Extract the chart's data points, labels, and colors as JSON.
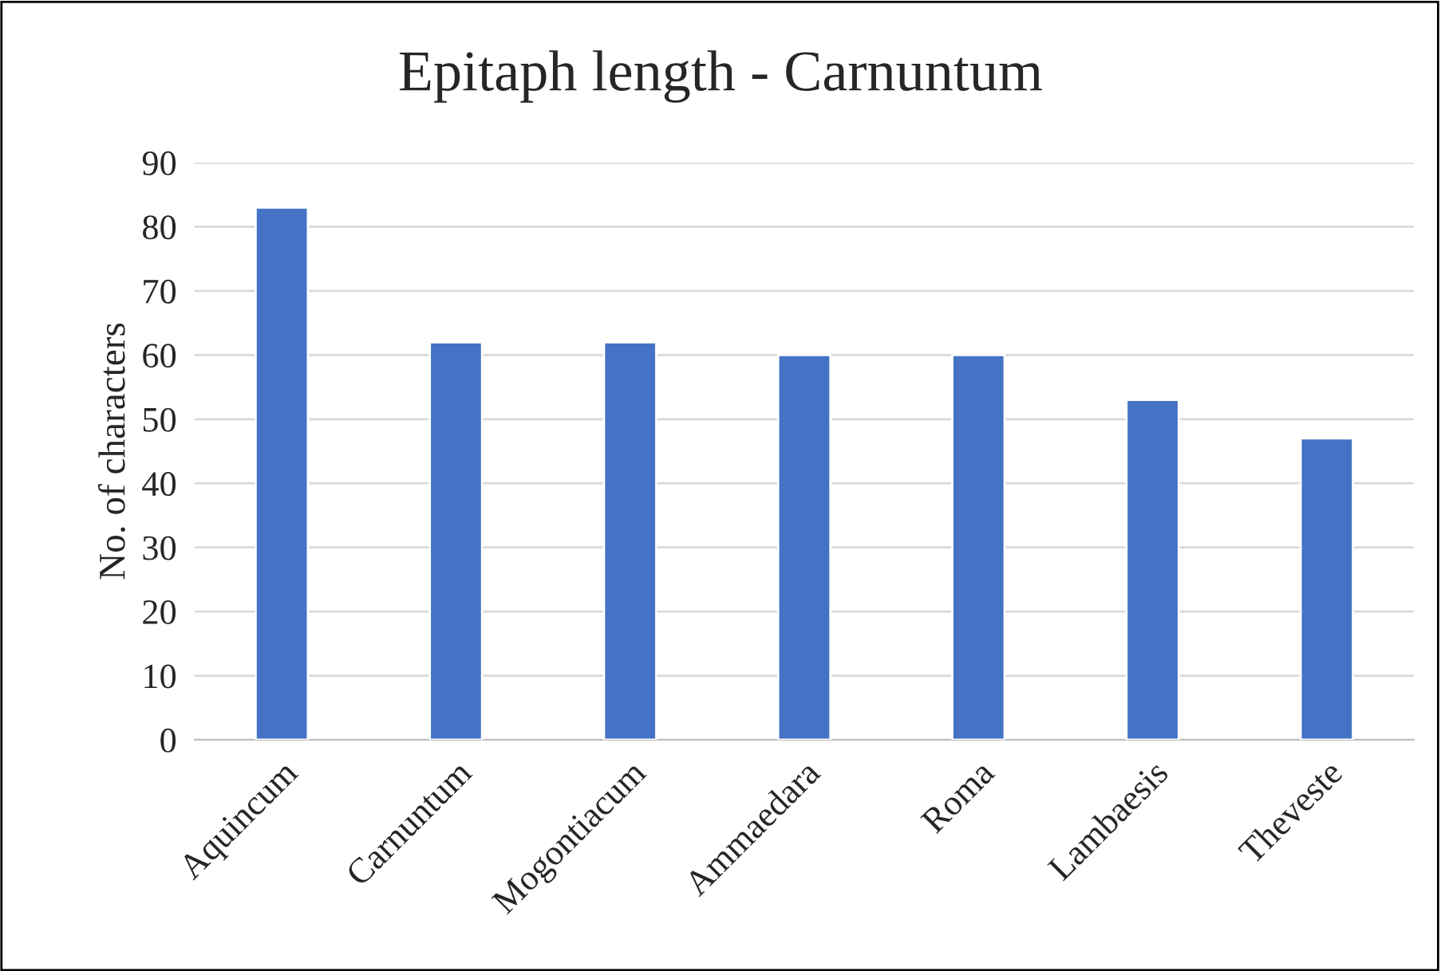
{
  "chart_data": {
    "type": "bar",
    "title": "Epitaph length - Carnuntum",
    "ylabel": "No. of characters",
    "categories": [
      "Aquincum",
      "Carnuntum",
      "Mogontiacum",
      "Ammaedara",
      "Roma",
      "Lambaesis",
      "Theveste"
    ],
    "values": [
      83,
      62,
      62,
      60,
      60,
      53,
      47
    ],
    "color": "#4472c4",
    "ylim": [
      0,
      90
    ],
    "yticks": [
      0,
      10,
      20,
      30,
      40,
      50,
      60,
      70,
      80,
      90
    ],
    "grid": "y",
    "legend": false
  }
}
